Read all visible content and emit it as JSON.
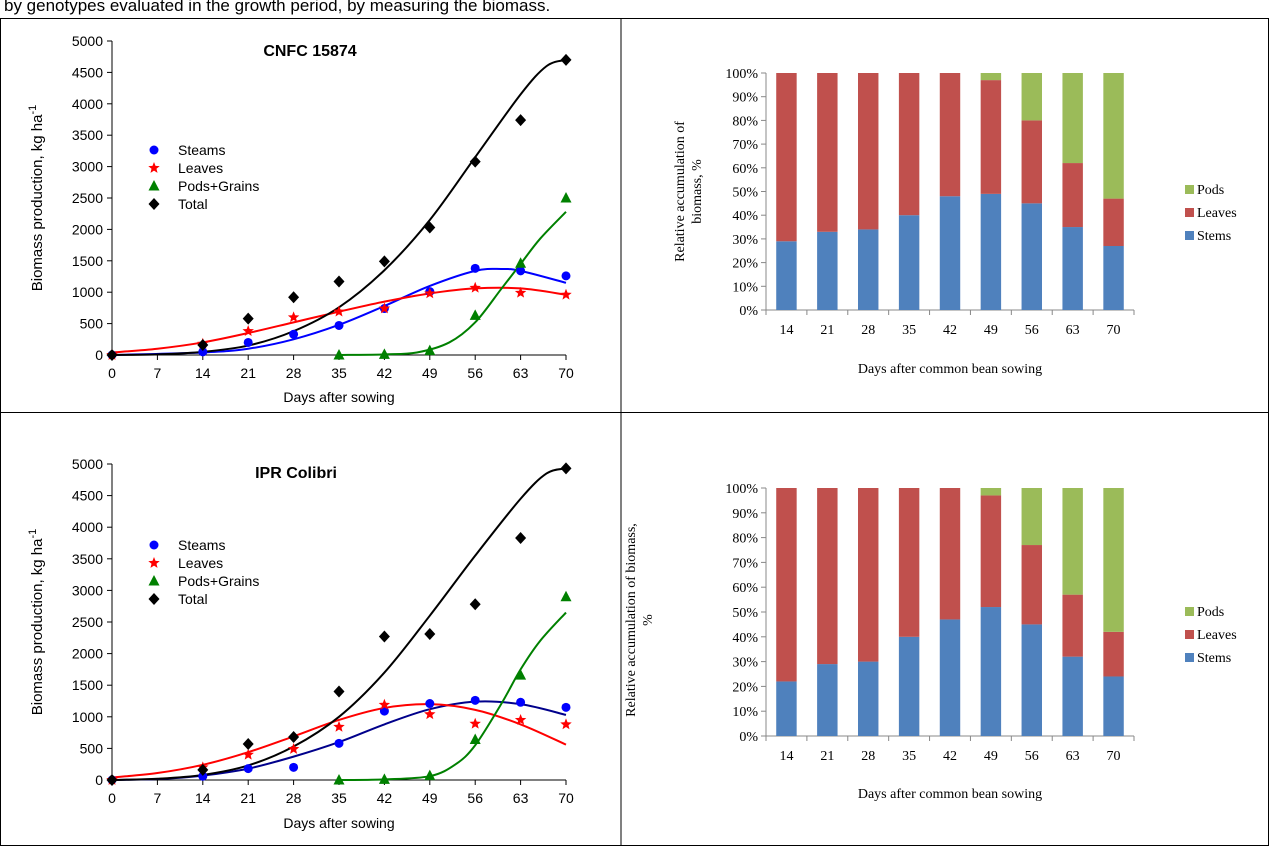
{
  "caption": "by genotypes evaluated in the growth period, by measuring the biomass.",
  "chart_data": [
    {
      "type": "scatter",
      "panel": "top-left",
      "title": "CNFC 15874",
      "xlabel": "Days after sowing",
      "ylabel": "Biomass production, kg ha",
      "ylabel_sup": "-1",
      "xlim": [
        0,
        70
      ],
      "ylim": [
        0,
        5000
      ],
      "xticks": [
        0,
        7,
        14,
        21,
        28,
        35,
        42,
        49,
        56,
        63,
        70
      ],
      "yticks": [
        0,
        500,
        1000,
        1500,
        2000,
        2500,
        3000,
        3500,
        4000,
        4500,
        5000
      ],
      "legend_position": "upper-left",
      "series": [
        {
          "name": "Steams",
          "color": "#0000ff",
          "marker": "circle",
          "x": [
            0,
            14,
            21,
            28,
            35,
            42,
            49,
            56,
            63,
            70
          ],
          "y": [
            0,
            50,
            200,
            330,
            470,
            740,
            1010,
            1380,
            1340,
            1260
          ],
          "fit": [
            [
              0,
              0
            ],
            [
              14,
              40
            ],
            [
              21,
              100
            ],
            [
              28,
              250
            ],
            [
              35,
              480
            ],
            [
              42,
              780
            ],
            [
              49,
              1100
            ],
            [
              56,
              1340
            ],
            [
              60,
              1370
            ],
            [
              63,
              1340
            ],
            [
              70,
              1150
            ]
          ]
        },
        {
          "name": "Leaves",
          "color": "#ff0000",
          "marker": "star",
          "x": [
            0,
            14,
            21,
            28,
            35,
            42,
            49,
            56,
            63,
            70
          ],
          "y": [
            0,
            180,
            380,
            600,
            690,
            740,
            980,
            1070,
            990,
            960
          ],
          "fit": [
            [
              0,
              40
            ],
            [
              7,
              100
            ],
            [
              14,
              200
            ],
            [
              21,
              350
            ],
            [
              28,
              520
            ],
            [
              35,
              690
            ],
            [
              42,
              850
            ],
            [
              49,
              980
            ],
            [
              56,
              1060
            ],
            [
              63,
              1060
            ],
            [
              70,
              960
            ]
          ]
        },
        {
          "name": "Pods+Grains",
          "color": "#008000",
          "marker": "triangle",
          "x": [
            35,
            42,
            49,
            56,
            63,
            70
          ],
          "y": [
            0,
            10,
            70,
            630,
            1460,
            2500
          ],
          "fit": [
            [
              35,
              0
            ],
            [
              42,
              10
            ],
            [
              47,
              40
            ],
            [
              52,
              200
            ],
            [
              56,
              520
            ],
            [
              60,
              1050
            ],
            [
              63,
              1450
            ],
            [
              66,
              1850
            ],
            [
              70,
              2280
            ]
          ]
        },
        {
          "name": "Total",
          "color": "#000000",
          "marker": "diamond",
          "x": [
            0,
            14,
            21,
            28,
            35,
            42,
            49,
            56,
            63,
            70
          ],
          "y": [
            0,
            160,
            580,
            920,
            1170,
            1490,
            2030,
            3080,
            3740,
            4700
          ],
          "fit": [
            [
              0,
              0
            ],
            [
              7,
              10
            ],
            [
              14,
              50
            ],
            [
              21,
              150
            ],
            [
              28,
              380
            ],
            [
              35,
              760
            ],
            [
              42,
              1350
            ],
            [
              49,
              2150
            ],
            [
              56,
              3150
            ],
            [
              63,
              4150
            ],
            [
              67,
              4600
            ],
            [
              70,
              4700
            ]
          ]
        }
      ]
    },
    {
      "type": "bar",
      "stacked": true,
      "percent": true,
      "panel": "top-right",
      "title": "",
      "xlabel": "Days after common bean sowing",
      "ylabel_lines": [
        "Relative accumulation of",
        "biomass, %"
      ],
      "ylim": [
        0,
        100
      ],
      "categories": [
        "14",
        "21",
        "28",
        "35",
        "42",
        "49",
        "56",
        "63",
        "70"
      ],
      "legend_position": "right",
      "series": [
        {
          "name": "Stems",
          "color": "#4f81bd",
          "values": [
            29,
            33,
            34,
            40,
            48,
            49,
            45,
            35,
            27
          ]
        },
        {
          "name": "Leaves",
          "color": "#c0504d",
          "values": [
            71,
            67,
            66,
            60,
            52,
            48,
            35,
            27,
            20
          ]
        },
        {
          "name": "Pods",
          "color": "#9bbb59",
          "values": [
            0,
            0,
            0,
            0,
            0,
            3,
            20,
            38,
            53
          ]
        }
      ]
    },
    {
      "type": "scatter",
      "panel": "bottom-left",
      "title": "IPR Colibri",
      "xlabel": "Days after sowing",
      "ylabel": "Biomass production, kg ha",
      "ylabel_sup": "-1",
      "xlim": [
        0,
        70
      ],
      "ylim": [
        0,
        5000
      ],
      "xticks": [
        0,
        7,
        14,
        21,
        28,
        35,
        42,
        49,
        56,
        63,
        70
      ],
      "yticks": [
        0,
        500,
        1000,
        1500,
        2000,
        2500,
        3000,
        3500,
        4000,
        4500,
        5000
      ],
      "legend_position": "upper-left",
      "series": [
        {
          "name": "Steams",
          "color": "#0000ff",
          "marker": "circle",
          "x": [
            0,
            14,
            21,
            28,
            35,
            42,
            49,
            56,
            63,
            70
          ],
          "y": [
            0,
            60,
            180,
            200,
            580,
            1090,
            1210,
            1260,
            1230,
            1150
          ],
          "fit": [
            [
              0,
              0
            ],
            [
              7,
              15
            ],
            [
              14,
              70
            ],
            [
              21,
              180
            ],
            [
              28,
              370
            ],
            [
              35,
              600
            ],
            [
              42,
              880
            ],
            [
              49,
              1120
            ],
            [
              56,
              1240
            ],
            [
              63,
              1200
            ],
            [
              70,
              1030
            ]
          ],
          "fit_color": "#00008b"
        },
        {
          "name": "Leaves",
          "color": "#ff0000",
          "marker": "star",
          "x": [
            0,
            14,
            21,
            28,
            35,
            42,
            49,
            56,
            63,
            70
          ],
          "y": [
            0,
            200,
            400,
            490,
            840,
            1190,
            1040,
            890,
            950,
            880
          ],
          "fit": [
            [
              0,
              40
            ],
            [
              7,
              110
            ],
            [
              14,
              240
            ],
            [
              21,
              440
            ],
            [
              28,
              690
            ],
            [
              35,
              950
            ],
            [
              42,
              1140
            ],
            [
              49,
              1200
            ],
            [
              56,
              1110
            ],
            [
              63,
              880
            ],
            [
              70,
              560
            ]
          ]
        },
        {
          "name": "Pods+Grains",
          "color": "#008000",
          "marker": "triangle",
          "x": [
            35,
            42,
            49,
            56,
            63,
            70
          ],
          "y": [
            0,
            10,
            70,
            640,
            1660,
            2900
          ],
          "fit": [
            [
              35,
              0
            ],
            [
              42,
              10
            ],
            [
              49,
              60
            ],
            [
              53,
              250
            ],
            [
              56,
              550
            ],
            [
              60,
              1200
            ],
            [
              63,
              1750
            ],
            [
              66,
              2200
            ],
            [
              70,
              2650
            ]
          ]
        },
        {
          "name": "Total",
          "color": "#000000",
          "marker": "diamond",
          "x": [
            0,
            14,
            21,
            28,
            35,
            42,
            49,
            56,
            63,
            70
          ],
          "y": [
            0,
            160,
            570,
            680,
            1400,
            2270,
            2310,
            2780,
            3830,
            4930
          ],
          "fit": [
            [
              0,
              0
            ],
            [
              7,
              20
            ],
            [
              14,
              80
            ],
            [
              21,
              230
            ],
            [
              28,
              530
            ],
            [
              35,
              1000
            ],
            [
              42,
              1700
            ],
            [
              49,
              2600
            ],
            [
              56,
              3550
            ],
            [
              63,
              4450
            ],
            [
              67,
              4850
            ],
            [
              70,
              4930
            ]
          ]
        }
      ]
    },
    {
      "type": "bar",
      "stacked": true,
      "percent": true,
      "panel": "bottom-right",
      "title": "",
      "xlabel": "Days after common bean sowing",
      "ylabel_lines": [
        "Relative accumulation  of biomass,",
        "%"
      ],
      "ylim": [
        0,
        100
      ],
      "categories": [
        "14",
        "21",
        "28",
        "35",
        "42",
        "49",
        "56",
        "63",
        "70"
      ],
      "legend_position": "right",
      "series": [
        {
          "name": "Stems",
          "color": "#4f81bd",
          "values": [
            22,
            29,
            30,
            40,
            47,
            52,
            45,
            32,
            24
          ]
        },
        {
          "name": "Leaves",
          "color": "#c0504d",
          "values": [
            78,
            71,
            70,
            60,
            53,
            45,
            32,
            25,
            18
          ]
        },
        {
          "name": "Pods",
          "color": "#9bbb59",
          "values": [
            0,
            0,
            0,
            0,
            0,
            3,
            23,
            43,
            58
          ]
        }
      ]
    }
  ]
}
